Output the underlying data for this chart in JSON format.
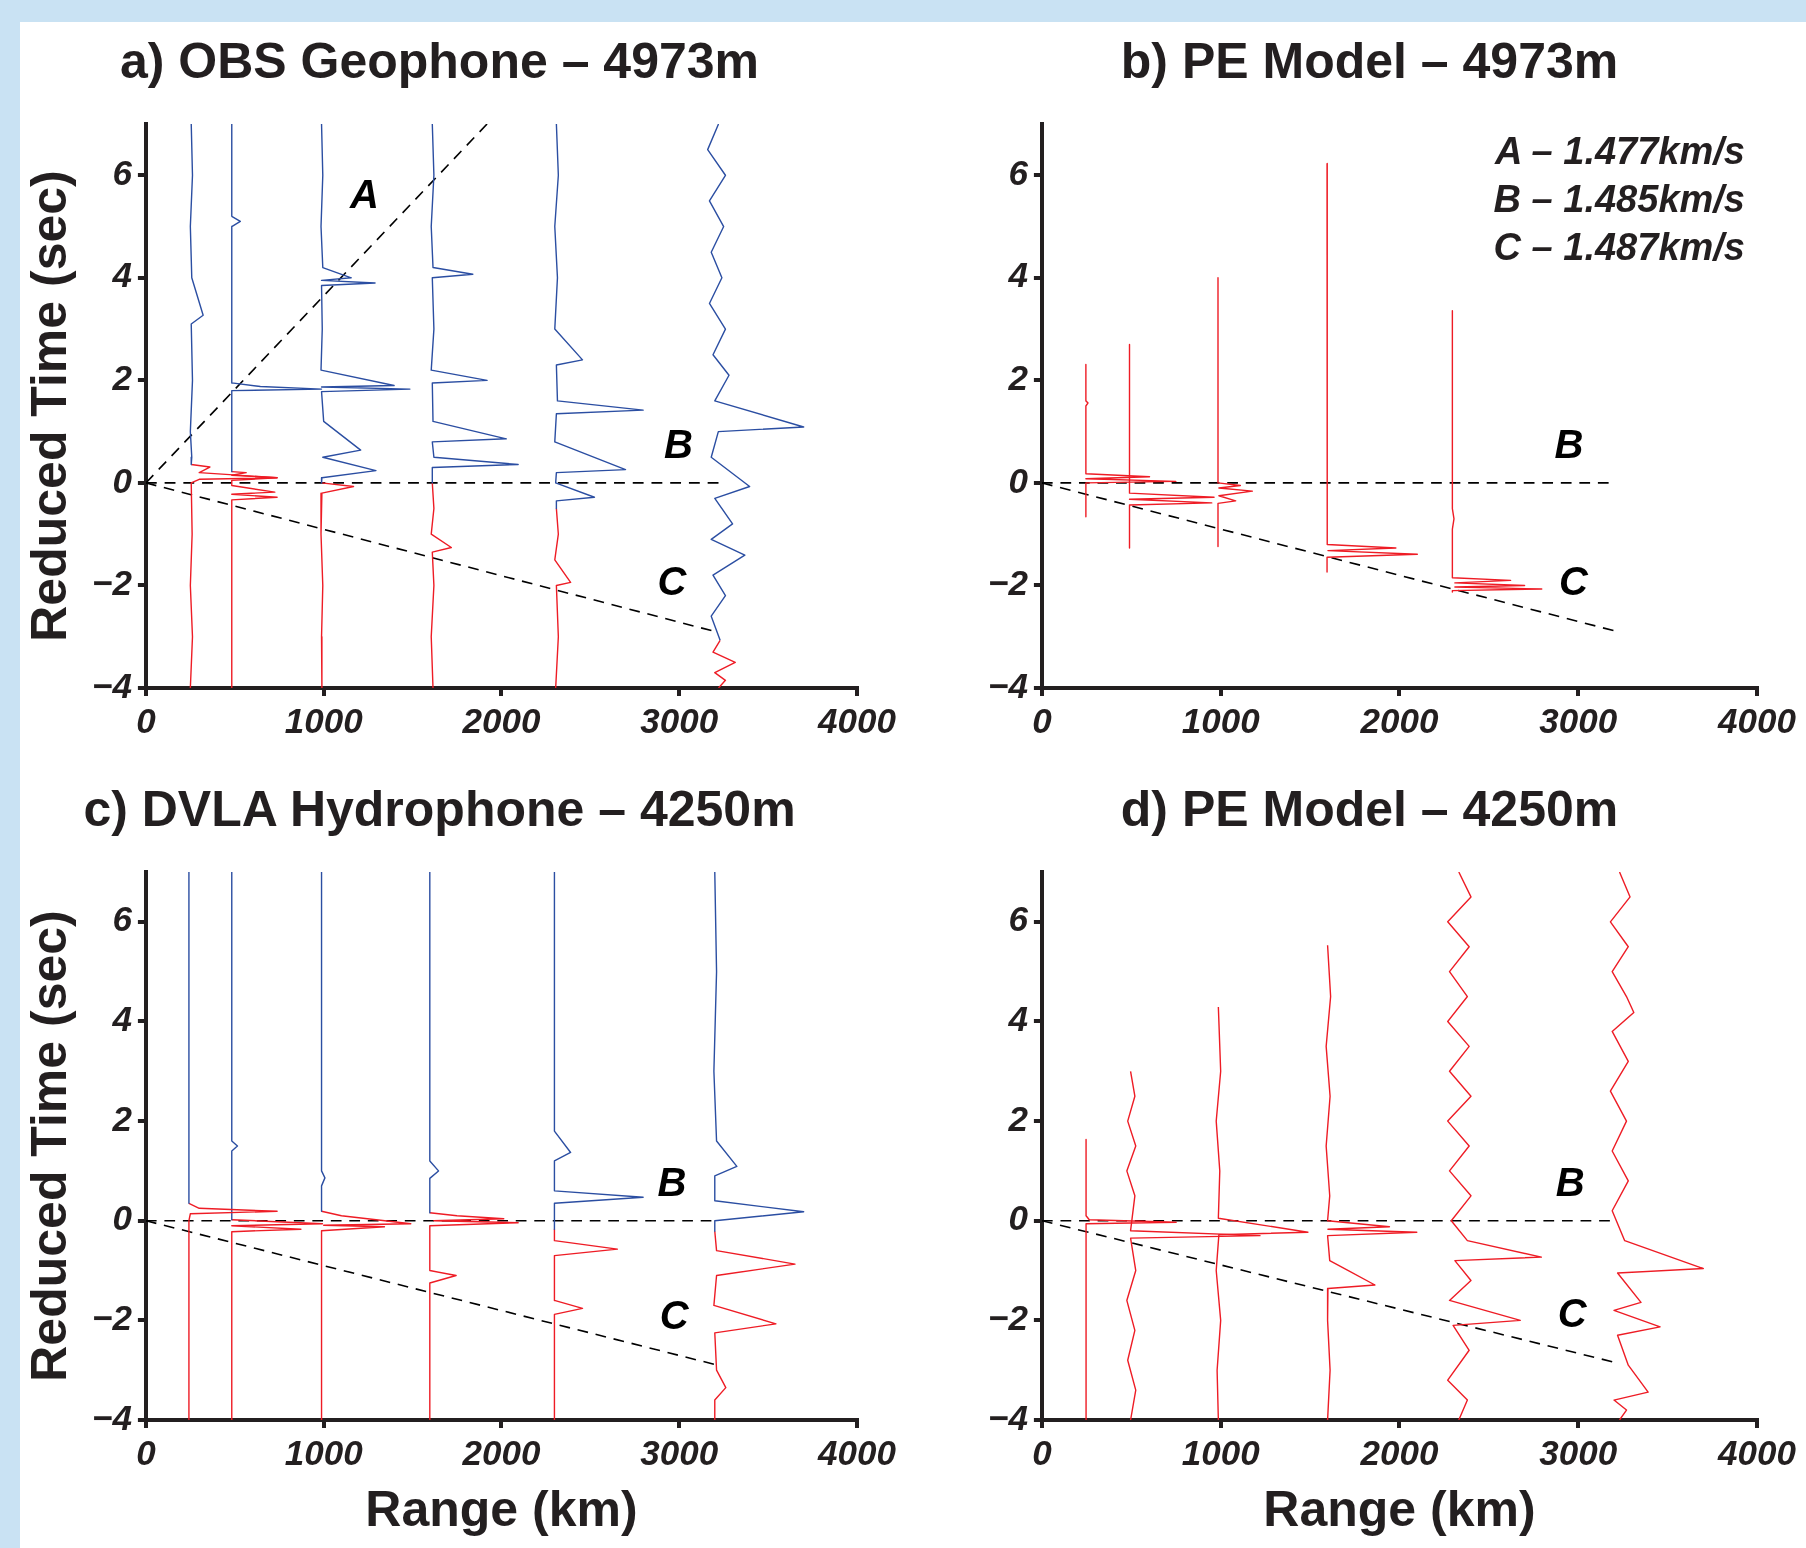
{
  "chart_data": [
    {
      "type": "line",
      "title": "a) OBS Geophone – 4973m",
      "ylabel": "Reduced Time (sec)",
      "xlim": [
        0,
        4000
      ],
      "ylim": [
        -4,
        7
      ],
      "xticks": [
        0,
        1000,
        2000,
        3000,
        4000
      ],
      "yticks": [
        -4,
        -2,
        0,
        2,
        4,
        6
      ],
      "series": [
        {
          "color": "#2b4ea2",
          "x": [
            255,
            262,
            250,
            258,
            322,
            255,
            262,
            250,
            258,
            255
          ],
          "values": [
            7,
            6,
            5,
            4,
            3.27,
            3.1,
            2,
            1,
            0.5,
            0.36
          ]
        },
        {
          "color": "#ee1c25",
          "x": [
            255,
            360,
            300,
            738,
            300,
            255,
            260,
            250,
            262,
            250
          ],
          "values": [
            0.36,
            0.31,
            0.2,
            0.1,
            0.07,
            0,
            -1,
            -2,
            -3,
            -4
          ]
        },
        {
          "color": "#2b4ea2",
          "x": [
            483,
            483,
            531,
            483,
            483,
            644,
            988,
            483,
            483
          ],
          "values": [
            7,
            5.2,
            5.1,
            5.0,
            1.95,
            1.88,
            1.83,
            1.8,
            0.22
          ]
        },
        {
          "color": "#ee1c25",
          "x": [
            483,
            564,
            483,
            738,
            483,
            483,
            725,
            483,
            738,
            483,
            483
          ],
          "values": [
            0.22,
            0.2,
            0.15,
            0.1,
            0.05,
            -0.05,
            -0.18,
            -0.22,
            -0.28,
            -0.33,
            -4
          ]
        },
        {
          "color": "#2b4ea2",
          "x": [
            988,
            995,
            985,
            995,
            1155,
            988,
            1289,
            988,
            992,
            985,
            1396,
            988,
            1485,
            988,
            1000,
            1208,
            995,
            1294,
            990,
            988
          ],
          "values": [
            7,
            6,
            5,
            4.2,
            4.0,
            3.95,
            3.9,
            3.85,
            3,
            2.2,
            1.9,
            1.87,
            1.83,
            1.78,
            1.2,
            0.64,
            0.5,
            0.24,
            0.1,
            0
          ]
        },
        {
          "color": "#ee1c25",
          "x": [
            988,
            1168,
            990,
            985,
            995,
            988,
            990
          ],
          "values": [
            0,
            -0.07,
            -0.2,
            -1,
            -2,
            -3,
            -4
          ]
        },
        {
          "color": "#2b4ea2",
          "x": [
            1611,
            1620,
            1605,
            1615,
            1839,
            1611,
            1620,
            1605,
            1919,
            1611,
            1615,
            2027,
            1611,
            1620,
            2094,
            1611,
            1611
          ],
          "values": [
            7,
            6,
            5,
            4.2,
            4.07,
            4.0,
            3,
            2.2,
            2.0,
            1.95,
            1.2,
            0.86,
            0.8,
            0.5,
            0.36,
            0.3,
            0
          ]
        },
        {
          "color": "#ee1c25",
          "x": [
            1611,
            1620,
            1605,
            1718,
            1611,
            1620,
            1605,
            1615
          ],
          "values": [
            0,
            -0.5,
            -1,
            -1.26,
            -1.35,
            -2,
            -3,
            -4
          ]
        },
        {
          "color": "#2b4ea2",
          "x": [
            2309,
            2320,
            2300,
            2315,
            2300,
            2456,
            2309,
            2315,
            2797,
            2309,
            2300,
            2698,
            2309,
            2305,
            2523,
            2309,
            2309
          ],
          "values": [
            7,
            6,
            5,
            4,
            3,
            2.4,
            2.3,
            1.6,
            1.42,
            1.35,
            0.8,
            0.26,
            0.2,
            0,
            -0.28,
            -0.35,
            -0.5
          ]
        },
        {
          "color": "#ee1c25",
          "x": [
            2309,
            2320,
            2300,
            2389,
            2309,
            2320,
            2305
          ],
          "values": [
            -0.5,
            -1,
            -1.5,
            -1.94,
            -2.0,
            -3,
            -4
          ]
        },
        {
          "color": "#2b4ea2",
          "x": [
            3221,
            3160,
            3260,
            3170,
            3250,
            3180,
            3240,
            3170,
            3260,
            3190,
            3280,
            3200,
            3700,
            3220,
            3180,
            3396,
            3200,
            3300,
            3180,
            3369,
            3190,
            3260,
            3180,
            3230
          ],
          "values": [
            7,
            6.5,
            6,
            5.5,
            5,
            4.5,
            4,
            3.5,
            3,
            2.5,
            2.1,
            1.6,
            1.09,
            1.0,
            0.5,
            -0.07,
            -0.3,
            -0.8,
            -1.1,
            -1.41,
            -1.8,
            -2.2,
            -2.6,
            -3.07
          ]
        },
        {
          "color": "#ee1c25",
          "x": [
            3230,
            3190,
            3315,
            3200,
            3260,
            3221
          ],
          "values": [
            -3.07,
            -3.3,
            -3.5,
            -3.7,
            -3.85,
            -4
          ]
        },
        {
          "name": "A",
          "color": "#000000",
          "line_style": "dashed",
          "x": [
            0,
            1919
          ],
          "values": [
            0,
            7
          ]
        },
        {
          "name": "B",
          "color": "#000000",
          "line_style": "dashed",
          "x": [
            0,
            3221
          ],
          "values": [
            0,
            0
          ]
        },
        {
          "name": "C",
          "color": "#000000",
          "line_style": "dashed",
          "x": [
            0,
            3181
          ],
          "values": [
            0,
            -2.88
          ]
        }
      ]
    },
    {
      "type": "line",
      "title": "b) PE Model – 4973m",
      "xlim": [
        0,
        4000
      ],
      "ylim": [
        -4,
        7
      ],
      "xticks": [
        0,
        1000,
        2000,
        3000,
        4000
      ],
      "yticks": [
        -4,
        -2,
        0,
        2,
        4,
        6
      ],
      "series": [
        {
          "color": "#ee1c25",
          "x": [
            246,
            246,
            258,
            246,
            246,
            602,
            246,
            749,
            246,
            246
          ],
          "values": [
            2.31,
            1.6,
            1.56,
            1.5,
            0.18,
            0.12,
            0.08,
            0.03,
            0,
            -0.66
          ]
        },
        {
          "color": "#ee1c25",
          "x": [
            490,
            490,
            963,
            490,
            950,
            490,
            490
          ],
          "values": [
            2.7,
            -0.2,
            -0.28,
            -0.32,
            -0.39,
            -0.43,
            -1.27
          ]
        },
        {
          "color": "#ee1c25",
          "x": [
            985,
            985,
            1110,
            990,
            1177,
            990,
            1084,
            985,
            985
          ],
          "values": [
            4.0,
            0.0,
            -0.05,
            -0.1,
            -0.16,
            -0.25,
            -0.35,
            -0.4,
            -1.24
          ]
        },
        {
          "color": "#ee1c25",
          "x": [
            1595,
            1598,
            1595,
            1595,
            1980,
            1600,
            2100,
            1595,
            1595
          ],
          "values": [
            6.23,
            5.25,
            5.2,
            -1.2,
            -1.27,
            -1.32,
            -1.39,
            -1.45,
            -1.74
          ]
        },
        {
          "color": "#ee1c25",
          "x": [
            2296,
            2296,
            2305,
            2296,
            2296,
            2622,
            2310,
            2700,
            2310,
            2796,
            2296,
            2296
          ],
          "values": [
            3.36,
            -0.5,
            -0.7,
            -0.9,
            -1.85,
            -1.9,
            -1.95,
            -2.0,
            -2.03,
            -2.07,
            -2.1,
            -2.13
          ]
        },
        {
          "name": "B",
          "color": "#000000",
          "line_style": "dashed",
          "x": [
            0,
            3170
          ],
          "values": [
            0,
            0
          ]
        },
        {
          "name": "C",
          "color": "#000000",
          "line_style": "dashed",
          "x": [
            0,
            3197
          ],
          "values": [
            0,
            -2.88
          ]
        }
      ],
      "annotations": [
        "A – 1.477km/s",
        "B – 1.485km/s",
        "C – 1.487km/s"
      ]
    },
    {
      "type": "line",
      "title": "c) DVLA Hydrophone – 4250m",
      "xlabel": "Range (km)",
      "ylabel": "Reduced Time (sec)",
      "xlim": [
        0,
        4000
      ],
      "ylim": [
        -4,
        7
      ],
      "xticks": [
        0,
        1000,
        2000,
        3000,
        4000
      ],
      "yticks": [
        -4,
        -2,
        0,
        2,
        4,
        6
      ],
      "series": [
        {
          "color": "#2b4ea2",
          "x": [
            242,
            242
          ],
          "values": [
            7,
            0.35
          ]
        },
        {
          "color": "#ee1c25",
          "x": [
            242,
            300,
            738,
            250,
            242,
            242
          ],
          "values": [
            0.35,
            0.25,
            0.19,
            0.14,
            0,
            -4
          ]
        },
        {
          "color": "#2b4ea2",
          "x": [
            483,
            483,
            515,
            483,
            483
          ],
          "values": [
            7,
            1.6,
            1.5,
            1.4,
            0.02
          ]
        },
        {
          "color": "#ee1c25",
          "x": [
            483,
            993,
            483,
            872,
            483,
            483
          ],
          "values": [
            0.02,
            -0.06,
            -0.1,
            -0.17,
            -0.22,
            -4
          ]
        },
        {
          "color": "#2b4ea2",
          "x": [
            988,
            988,
            1007,
            988,
            988
          ],
          "values": [
            7,
            1,
            0.86,
            0.7,
            0.19
          ]
        },
        {
          "color": "#ee1c25",
          "x": [
            988,
            1100,
            1490,
            1000,
            1342,
            988,
            988
          ],
          "values": [
            0.19,
            0.1,
            -0.06,
            -0.09,
            -0.12,
            -0.2,
            -4
          ]
        },
        {
          "color": "#2b4ea2",
          "x": [
            1597,
            1597,
            1646,
            1597,
            1597
          ],
          "values": [
            7,
            1.2,
            1.0,
            0.85,
            0.16
          ]
        },
        {
          "color": "#ee1c25",
          "x": [
            1597,
            1750,
            2013,
            1620,
            2094,
            1597,
            1597,
            1745,
            1597,
            1597
          ],
          "values": [
            0.16,
            0.1,
            0.04,
            0,
            -0.04,
            -0.1,
            -1.0,
            -1.1,
            -1.25,
            -4
          ]
        },
        {
          "color": "#2b4ea2",
          "x": [
            2298,
            2298,
            2389,
            2298,
            2298,
            2797,
            2298,
            2298
          ],
          "values": [
            7,
            1.8,
            1.37,
            1.2,
            0.6,
            0.47,
            0.35,
            -0.17
          ]
        },
        {
          "color": "#ee1c25",
          "x": [
            2298,
            2298,
            2652,
            2298,
            2298,
            2456,
            2298,
            2298
          ],
          "values": [
            -0.17,
            -0.4,
            -0.57,
            -0.7,
            -1.6,
            -1.76,
            -1.88,
            -4
          ]
        },
        {
          "color": "#2b4ea2",
          "x": [
            3200,
            3210,
            3195,
            3210,
            3324,
            3200,
            3200,
            3700,
            3200,
            3200
          ],
          "values": [
            7,
            5,
            3,
            1.6,
            1.09,
            0.9,
            0.4,
            0.18,
            0,
            -0.21
          ]
        },
        {
          "color": "#ee1c25",
          "x": [
            3200,
            3210,
            3651,
            3210,
            3195,
            3544,
            3200,
            3210,
            3262,
            3200,
            3200
          ],
          "values": [
            -0.21,
            -0.6,
            -0.87,
            -1.1,
            -1.7,
            -2.07,
            -2.25,
            -3,
            -3.35,
            -3.6,
            -4
          ]
        },
        {
          "name": "B",
          "color": "#000000",
          "line_style": "dashed",
          "x": [
            0,
            3181
          ],
          "values": [
            0,
            0
          ]
        },
        {
          "name": "C",
          "color": "#000000",
          "line_style": "dashed",
          "x": [
            0,
            3195
          ],
          "values": [
            0,
            -2.88
          ]
        }
      ]
    },
    {
      "type": "line",
      "title": "d) PE Model – 4250m",
      "xlabel": "Range (km)",
      "xlim": [
        0,
        4000
      ],
      "ylim": [
        -4,
        7
      ],
      "xticks": [
        0,
        1000,
        2000,
        3000,
        4000
      ],
      "yticks": [
        -4,
        -2,
        0,
        2,
        4,
        6
      ],
      "series": [
        {
          "color": "#ee1c25",
          "x": [
            247,
            247,
            265,
            751,
            247,
            247
          ],
          "values": [
            1.63,
            0.1,
            0.02,
            -0.03,
            -0.06,
            -4
          ]
        },
        {
          "color": "#ee1c25",
          "x": [
            496,
            520,
            480,
            525,
            475,
            520,
            496,
            1220,
            496,
            525,
            475,
            520,
            480,
            525,
            496
          ],
          "values": [
            3.0,
            2.5,
            2,
            1.5,
            1,
            0.5,
            -0.2,
            -0.3,
            -0.35,
            -1,
            -1.6,
            -2.2,
            -2.8,
            -3.4,
            -4
          ]
        },
        {
          "color": "#ee1c25",
          "x": [
            987,
            1000,
            975,
            995,
            987,
            1488,
            990,
            975,
            1000,
            980,
            987
          ],
          "values": [
            4.29,
            3,
            2,
            1,
            0.05,
            -0.23,
            -0.28,
            -1,
            -2,
            -3,
            -4
          ]
        },
        {
          "color": "#ee1c25",
          "x": [
            1598,
            1615,
            1590,
            1612,
            1590,
            1610,
            1598,
            1944,
            1600,
            2097,
            1598,
            1610,
            1863,
            1600,
            1598,
            1612,
            1598
          ],
          "values": [
            5.53,
            4.5,
            3.5,
            2.5,
            1.5,
            0.5,
            0,
            -0.12,
            -0.17,
            -0.23,
            -0.3,
            -0.8,
            -1.29,
            -1.36,
            -2,
            -3,
            -4
          ]
        },
        {
          "color": "#ee1c25",
          "x": [
            2332,
            2400,
            2270,
            2390,
            2280,
            2380,
            2270,
            2390,
            2280,
            2400,
            2270,
            2390,
            2280,
            2400,
            2290,
            2380,
            2794,
            2310,
            2400,
            2280,
            2676,
            2300,
            2390,
            2270,
            2380,
            2332
          ],
          "values": [
            7,
            6.5,
            6,
            5.5,
            5,
            4.5,
            4,
            3.5,
            3,
            2.5,
            2,
            1.5,
            1,
            0.5,
            0,
            -0.4,
            -0.73,
            -0.8,
            -1.2,
            -1.6,
            -2.0,
            -2.1,
            -2.6,
            -3.2,
            -3.6,
            -4
          ]
        },
        {
          "color": "#ee1c25",
          "x": [
            3231,
            3290,
            3180,
            3280,
            3190,
            3270,
            3311,
            3190,
            3280,
            3180,
            3270,
            3190,
            3280,
            3190,
            3260,
            3700,
            3220,
            3351,
            3200,
            3458,
            3220,
            3280,
            3391,
            3200,
            3270,
            3231
          ],
          "values": [
            7,
            6.5,
            6,
            5.5,
            5,
            4.5,
            4.18,
            3.8,
            3.2,
            2.6,
            2,
            1.4,
            0.8,
            0.2,
            -0.4,
            -0.96,
            -1.05,
            -1.64,
            -1.8,
            -2.13,
            -2.3,
            -2.9,
            -3.44,
            -3.6,
            -3.8,
            -4
          ]
        },
        {
          "name": "B",
          "color": "#000000",
          "line_style": "dashed",
          "x": [
            0,
            3177
          ],
          "values": [
            0,
            0
          ]
        },
        {
          "name": "C",
          "color": "#000000",
          "line_style": "dashed",
          "x": [
            0,
            3190
          ],
          "values": [
            0,
            -2.83
          ]
        }
      ]
    }
  ]
}
